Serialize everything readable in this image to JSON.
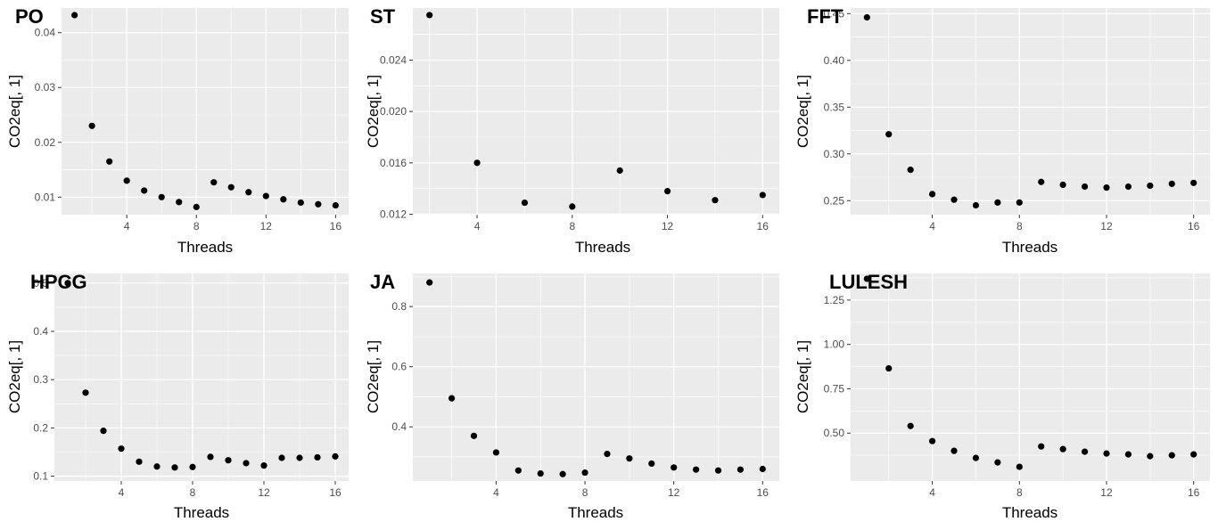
{
  "chart_data": [
    {
      "type": "scatter",
      "tag": "PO",
      "xlabel": "Threads",
      "ylabel": "CO2eq[, 1]",
      "xlim": [
        1,
        16
      ],
      "ylim": [
        0.0068,
        0.0445
      ],
      "xticks": [
        4,
        8,
        12,
        16
      ],
      "yticks": [
        0.01,
        0.02,
        0.03,
        0.04
      ],
      "ytick_labels": [
        "0.01",
        "0.02",
        "0.03",
        "0.04"
      ],
      "x": [
        1,
        2,
        3,
        4,
        5,
        6,
        7,
        8,
        9,
        10,
        11,
        12,
        13,
        14,
        15,
        16
      ],
      "y": [
        0.0432,
        0.023,
        0.0165,
        0.013,
        0.0112,
        0.01,
        0.0091,
        0.0082,
        0.0127,
        0.0118,
        0.0109,
        0.0102,
        0.0096,
        0.009,
        0.0087,
        0.0085
      ]
    },
    {
      "type": "scatter",
      "tag": "ST",
      "xlabel": "Threads",
      "ylabel": "CO2eq[, 1]",
      "xlim": [
        2,
        16
      ],
      "ylim": [
        0.01197,
        0.02805
      ],
      "xticks": [
        4,
        8,
        12,
        16
      ],
      "yticks": [
        0.012,
        0.016,
        0.02,
        0.024
      ],
      "ytick_labels": [
        "0.012",
        "0.016",
        "0.020",
        "0.024"
      ],
      "x": [
        2,
        4,
        6,
        8,
        10,
        12,
        14,
        16
      ],
      "y": [
        0.0275,
        0.016,
        0.0129,
        0.0126,
        0.0154,
        0.0138,
        0.0131,
        0.0135
      ]
    },
    {
      "type": "scatter",
      "tag": "FFT",
      "xlabel": "Threads",
      "ylabel": "CO2eq[, 1]",
      "xlim": [
        1,
        16
      ],
      "ylim": [
        0.235,
        0.456
      ],
      "xticks": [
        4,
        8,
        12,
        16
      ],
      "yticks": [
        0.25,
        0.3,
        0.35,
        0.4,
        0.45
      ],
      "ytick_labels": [
        "0.25",
        "0.30",
        "0.35",
        "0.40",
        "0.45"
      ],
      "x": [
        1,
        2,
        3,
        4,
        5,
        6,
        7,
        8,
        9,
        10,
        11,
        12,
        13,
        14,
        15,
        16
      ],
      "y": [
        0.446,
        0.321,
        0.283,
        0.257,
        0.251,
        0.245,
        0.248,
        0.248,
        0.27,
        0.267,
        0.265,
        0.264,
        0.265,
        0.266,
        0.268,
        0.269
      ]
    },
    {
      "type": "scatter",
      "tag": "HPCG",
      "xlabel": "Threads",
      "ylabel": "CO2eq[, 1]",
      "xlim": [
        1,
        16
      ],
      "ylim": [
        0.09,
        0.52
      ],
      "xticks": [
        4,
        8,
        12,
        16
      ],
      "yticks": [
        0.1,
        0.2,
        0.3,
        0.4,
        0.5
      ],
      "ytick_labels": [
        "0.1",
        "0.2",
        "0.3",
        "0.4",
        "0.5"
      ],
      "x": [
        1,
        2,
        3,
        4,
        5,
        6,
        7,
        8,
        9,
        10,
        11,
        12,
        13,
        14,
        15,
        16
      ],
      "y": [
        0.5,
        0.273,
        0.194,
        0.157,
        0.13,
        0.12,
        0.118,
        0.119,
        0.14,
        0.133,
        0.127,
        0.122,
        0.138,
        0.138,
        0.139,
        0.141
      ]
    },
    {
      "type": "scatter",
      "tag": "JA",
      "xlabel": "Threads",
      "ylabel": "CO2eq[, 1]",
      "xlim": [
        1,
        16
      ],
      "ylim": [
        0.22,
        0.91
      ],
      "xticks": [
        4,
        8,
        12,
        16
      ],
      "yticks": [
        0.4,
        0.6,
        0.8
      ],
      "ytick_labels": [
        "0.4",
        "0.6",
        "0.8"
      ],
      "x": [
        1,
        2,
        3,
        4,
        5,
        6,
        7,
        8,
        9,
        10,
        11,
        12,
        13,
        14,
        15,
        16
      ],
      "y": [
        0.88,
        0.495,
        0.37,
        0.315,
        0.255,
        0.245,
        0.243,
        0.248,
        0.31,
        0.295,
        0.278,
        0.265,
        0.258,
        0.255,
        0.258,
        0.26
      ]
    },
    {
      "type": "scatter",
      "tag": "LULESH",
      "xlabel": "Threads",
      "ylabel": "CO2eq[, 1]",
      "xlim": [
        1,
        16
      ],
      "ylim": [
        0.23,
        1.4
      ],
      "xticks": [
        4,
        8,
        12,
        16
      ],
      "yticks": [
        0.5,
        0.75,
        1.0,
        1.25
      ],
      "ytick_labels": [
        "0.50",
        "0.75",
        "1.00",
        "1.25"
      ],
      "x": [
        1,
        2,
        3,
        4,
        5,
        6,
        7,
        8,
        9,
        10,
        11,
        12,
        13,
        14,
        15,
        16
      ],
      "y": [
        1.37,
        0.865,
        0.54,
        0.455,
        0.4,
        0.36,
        0.335,
        0.31,
        0.425,
        0.41,
        0.395,
        0.385,
        0.38,
        0.37,
        0.375,
        0.38
      ]
    }
  ],
  "style": {
    "panel_background": "#ebebeb",
    "grid_major": "#ffffff",
    "point_color": "#000000",
    "tick_label_color": "#4d4d4d"
  }
}
